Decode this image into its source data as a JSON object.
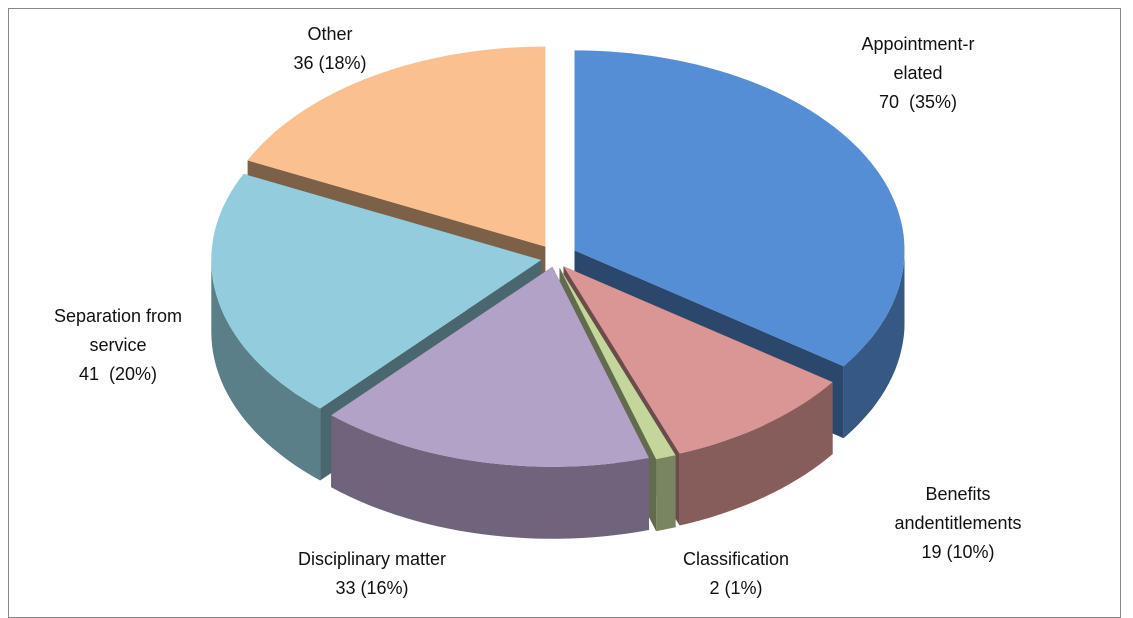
{
  "chart_data": {
    "type": "pie3d",
    "categories": [
      "Appointment-related",
      "Benefits andentitlements",
      "Classification",
      "Disciplinary matter",
      "Separation from service",
      "Other"
    ],
    "values": [
      70,
      19,
      2,
      33,
      41,
      36
    ],
    "value_labels": [
      "70  (35%)",
      "19 (10%)",
      "2 (1%)",
      "33 (16%)",
      "41  (20%)",
      "36 (18%)"
    ],
    "colors": [
      "#558ED5",
      "#D99694",
      "#C3D69B",
      "#B3A2C7",
      "#93CDDD",
      "#FAC090"
    ]
  }
}
